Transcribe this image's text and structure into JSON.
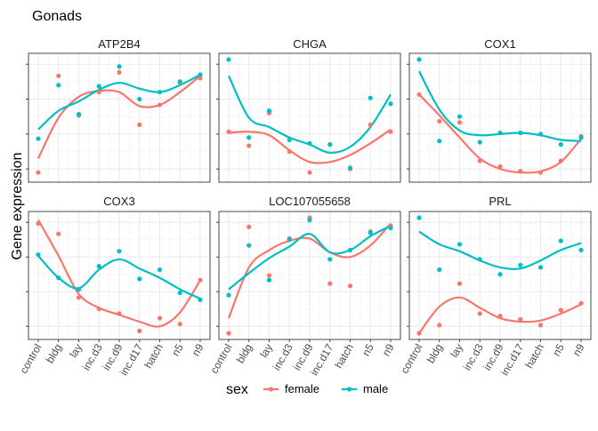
{
  "chart_data": {
    "type": "scatter",
    "title": "Gonads",
    "ylabel": "Gene expression",
    "xlabel": "",
    "categories": [
      "control",
      "bldg",
      "lay",
      "inc.d3",
      "inc.d9",
      "inc.d17",
      "hatch",
      "n5",
      "n9"
    ],
    "ylim": [
      0,
      1
    ],
    "grid": true,
    "legend": {
      "title": "sex",
      "position": "bottom",
      "entries": [
        {
          "name": "female",
          "color": "#F8766D"
        },
        {
          "name": "male",
          "color": "#00BFC4"
        }
      ]
    },
    "panels": [
      {
        "title": "ATP2B4",
        "series": [
          {
            "name": "female",
            "points": [
              0.03,
              0.86,
              0.52,
              0.72,
              0.89,
              0.44,
              0.61,
              0.8,
              0.84
            ],
            "smooth": [
              0.15,
              0.5,
              0.68,
              0.73,
              0.72,
              0.6,
              0.61,
              0.72,
              0.86
            ]
          },
          {
            "name": "male",
            "points": [
              0.32,
              0.78,
              0.53,
              0.77,
              0.94,
              0.66,
              0.72,
              0.81,
              0.87
            ],
            "smooth": [
              0.4,
              0.56,
              0.64,
              0.74,
              0.8,
              0.75,
              0.72,
              0.78,
              0.87
            ]
          }
        ]
      },
      {
        "title": "CHGA",
        "series": [
          {
            "name": "female",
            "points": [
              0.38,
              0.26,
              0.54,
              0.21,
              0.03,
              0.27,
              0.06,
              0.44,
              0.38
            ],
            "smooth": [
              0.37,
              0.38,
              0.35,
              0.22,
              0.12,
              0.12,
              0.18,
              0.28,
              0.4
            ]
          },
          {
            "name": "male",
            "points": [
              1.0,
              0.33,
              0.56,
              0.31,
              0.28,
              0.27,
              0.07,
              0.67,
              0.62
            ],
            "smooth": [
              0.86,
              0.5,
              0.42,
              0.33,
              0.27,
              0.2,
              0.25,
              0.42,
              0.7
            ]
          }
        ]
      },
      {
        "title": "COX1",
        "series": [
          {
            "name": "female",
            "points": [
              0.7,
              0.47,
              0.46,
              0.13,
              0.08,
              0.04,
              0.03,
              0.13,
              0.34
            ],
            "smooth": [
              0.7,
              0.52,
              0.33,
              0.15,
              0.06,
              0.03,
              0.04,
              0.12,
              0.32
            ]
          },
          {
            "name": "male",
            "points": [
              1.0,
              0.3,
              0.51,
              0.29,
              0.37,
              0.37,
              0.36,
              0.27,
              0.33
            ],
            "smooth": [
              0.9,
              0.57,
              0.39,
              0.35,
              0.36,
              0.37,
              0.35,
              0.31,
              0.3
            ]
          }
        ]
      },
      {
        "title": "COX3",
        "series": [
          {
            "name": "female",
            "points": [
              0.95,
              0.86,
              0.31,
              0.21,
              0.17,
              0.02,
              0.13,
              0.08,
              0.46
            ],
            "smooth": [
              0.98,
              0.67,
              0.34,
              0.22,
              0.16,
              0.1,
              0.06,
              0.18,
              0.46
            ]
          },
          {
            "name": "male",
            "points": [
              0.68,
              0.48,
              0.38,
              0.58,
              0.71,
              0.47,
              0.55,
              0.35,
              0.29
            ],
            "smooth": [
              0.67,
              0.48,
              0.39,
              0.55,
              0.64,
              0.56,
              0.48,
              0.38,
              0.3
            ]
          }
        ]
      },
      {
        "title": "LOC107055658",
        "series": [
          {
            "name": "female",
            "points": [
              0.0,
              0.92,
              0.5,
              0.82,
              1.0,
              0.43,
              0.41,
              0.88,
              0.93
            ],
            "smooth": [
              0.13,
              0.57,
              0.72,
              0.8,
              0.82,
              0.7,
              0.66,
              0.76,
              0.95
            ]
          },
          {
            "name": "male",
            "points": [
              0.33,
              0.76,
              0.46,
              0.81,
              0.98,
              0.64,
              0.72,
              0.87,
              0.91
            ],
            "smooth": [
              0.38,
              0.52,
              0.65,
              0.75,
              0.86,
              0.7,
              0.72,
              0.84,
              0.93
            ]
          }
        ]
      },
      {
        "title": "PRL",
        "series": [
          {
            "name": "female",
            "points": [
              0.0,
              0.07,
              0.43,
              0.17,
              0.15,
              0.12,
              0.07,
              0.2,
              0.26
            ],
            "smooth": [
              0.0,
              0.23,
              0.31,
              0.22,
              0.13,
              0.1,
              0.11,
              0.17,
              0.25
            ]
          },
          {
            "name": "male",
            "points": [
              1.0,
              0.55,
              0.77,
              0.64,
              0.51,
              0.59,
              0.57,
              0.8,
              0.72
            ],
            "smooth": [
              0.88,
              0.77,
              0.71,
              0.63,
              0.57,
              0.56,
              0.63,
              0.72,
              0.78
            ]
          }
        ]
      }
    ]
  }
}
